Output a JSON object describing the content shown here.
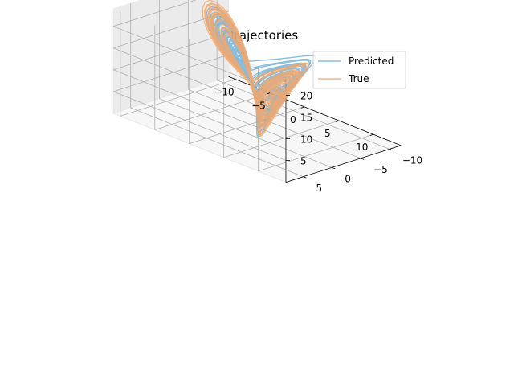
{
  "chart_data": {
    "type": "line",
    "projection": "3d",
    "title": "Trajectories",
    "xlabel": "",
    "ylabel": "",
    "zlabel": "",
    "xlim": [
      -11,
      14
    ],
    "ylim": [
      -12,
      8
    ],
    "zlim": [
      0,
      24
    ],
    "xticks": [
      "−10",
      "−5",
      "0",
      "5",
      "10"
    ],
    "xtick_values": [
      -10,
      -5,
      0,
      5,
      10
    ],
    "yticks": [
      "−10",
      "−5",
      "0",
      "5"
    ],
    "ytick_values": [
      -10,
      -5,
      0,
      5
    ],
    "zticks": [
      "5",
      "10",
      "15",
      "20"
    ],
    "ztick_values": [
      5,
      10,
      15,
      20
    ],
    "grid": true,
    "legend_position": "top-right",
    "series": [
      {
        "name": "Predicted",
        "color": "#6baed6",
        "opacity": 0.8
      },
      {
        "name": "True",
        "color": "#f4a76b",
        "opacity": 0.85
      }
    ]
  }
}
